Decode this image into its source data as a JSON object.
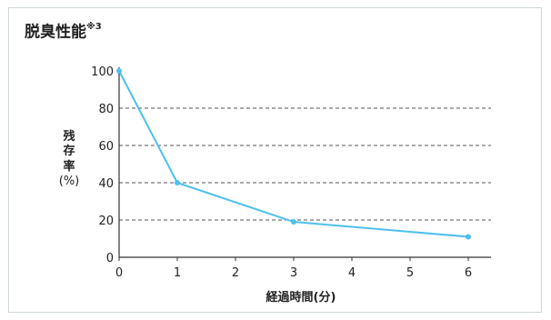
{
  "title": "脱臭性能",
  "title_note": "※3",
  "ylabel_chars": [
    "残",
    "存",
    "率"
  ],
  "ylabel_unit": "(%)",
  "xlabel": "経過時間(分)",
  "colors": {
    "line": "#4dc0ec",
    "grid": "#555555",
    "border": "#cfd8d8"
  },
  "chart_data": {
    "type": "line",
    "title": "脱臭性能※3",
    "xlabel": "経過時間(分)",
    "ylabel": "残存率(%)",
    "x": [
      0,
      1,
      3,
      6
    ],
    "series": [
      {
        "values": [
          100,
          40,
          19,
          11
        ]
      }
    ],
    "xticks": [
      "0",
      "1",
      "2",
      "3",
      "4",
      "5",
      "6"
    ],
    "yticks": [
      "0",
      "20",
      "40",
      "60",
      "80",
      "100"
    ],
    "xlim": [
      0,
      6
    ],
    "ylim": [
      0,
      100
    ],
    "grid": "horizontal dashed"
  }
}
